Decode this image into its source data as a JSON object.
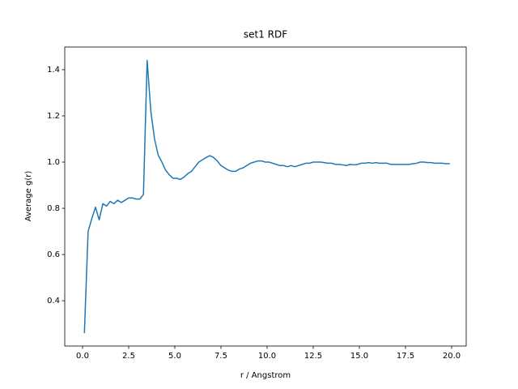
{
  "chart_data": {
    "type": "line",
    "title": "set1 RDF",
    "x_label": "r / Angstrom",
    "y_label": "Average g(r)",
    "color": "#1f77b4",
    "x": [
      0.1,
      0.3,
      0.5,
      0.7,
      0.9,
      1.1,
      1.3,
      1.5,
      1.7,
      1.9,
      2.1,
      2.3,
      2.5,
      2.7,
      2.9,
      3.1,
      3.3,
      3.5,
      3.7,
      3.9,
      4.1,
      4.3,
      4.5,
      4.7,
      4.9,
      5.1,
      5.3,
      5.5,
      5.7,
      5.9,
      6.1,
      6.3,
      6.5,
      6.7,
      6.9,
      7.1,
      7.3,
      7.5,
      7.7,
      7.9,
      8.1,
      8.3,
      8.5,
      8.7,
      8.9,
      9.1,
      9.3,
      9.5,
      9.7,
      9.9,
      10.1,
      10.3,
      10.5,
      10.7,
      10.9,
      11.1,
      11.3,
      11.5,
      11.7,
      11.9,
      12.1,
      12.3,
      12.5,
      12.7,
      12.9,
      13.1,
      13.3,
      13.5,
      13.7,
      13.9,
      14.1,
      14.3,
      14.5,
      14.7,
      14.9,
      15.1,
      15.3,
      15.5,
      15.7,
      15.9,
      16.1,
      16.3,
      16.5,
      16.7,
      16.9,
      17.1,
      17.3,
      17.5,
      17.7,
      17.9,
      18.1,
      18.3,
      18.5,
      18.7,
      18.9,
      19.1,
      19.3,
      19.5,
      19.7,
      19.9
    ],
    "values": [
      0.26,
      0.7,
      0.755,
      0.805,
      0.75,
      0.82,
      0.81,
      0.83,
      0.82,
      0.835,
      0.825,
      0.835,
      0.845,
      0.845,
      0.84,
      0.84,
      0.86,
      1.44,
      1.22,
      1.1,
      1.03,
      1.0,
      0.965,
      0.945,
      0.93,
      0.93,
      0.925,
      0.935,
      0.95,
      0.96,
      0.98,
      1.0,
      1.01,
      1.02,
      1.028,
      1.02,
      1.005,
      0.985,
      0.975,
      0.965,
      0.96,
      0.96,
      0.97,
      0.975,
      0.985,
      0.995,
      1.0,
      1.005,
      1.005,
      1.0,
      1.0,
      0.995,
      0.99,
      0.985,
      0.985,
      0.98,
      0.985,
      0.98,
      0.985,
      0.99,
      0.995,
      0.995,
      1.0,
      1.0,
      1.0,
      0.998,
      0.995,
      0.995,
      0.99,
      0.99,
      0.988,
      0.985,
      0.99,
      0.988,
      0.99,
      0.995,
      0.995,
      0.998,
      0.995,
      0.998,
      0.995,
      0.995,
      0.995,
      0.99,
      0.99,
      0.99,
      0.99,
      0.99,
      0.99,
      0.993,
      0.995,
      1.0,
      1.0,
      0.998,
      0.998,
      0.995,
      0.995,
      0.995,
      0.993,
      0.993
    ],
    "xlim": [
      -0.965,
      20.79
    ],
    "ylim": [
      0.204,
      1.498
    ],
    "xticks": [
      {
        "value": 0,
        "label": "0.0"
      },
      2.5,
      {
        "value": 5,
        "label": "5.0"
      },
      7.5,
      {
        "value": 10,
        "label": "10.0"
      },
      12.5,
      {
        "value": 15,
        "label": "15.0"
      },
      17.5,
      {
        "value": 20,
        "label": "20.0"
      }
    ],
    "yticks": [
      0.4,
      0.6,
      0.8,
      {
        "value": 1,
        "label": "1.0"
      },
      1.2,
      1.4
    ]
  }
}
